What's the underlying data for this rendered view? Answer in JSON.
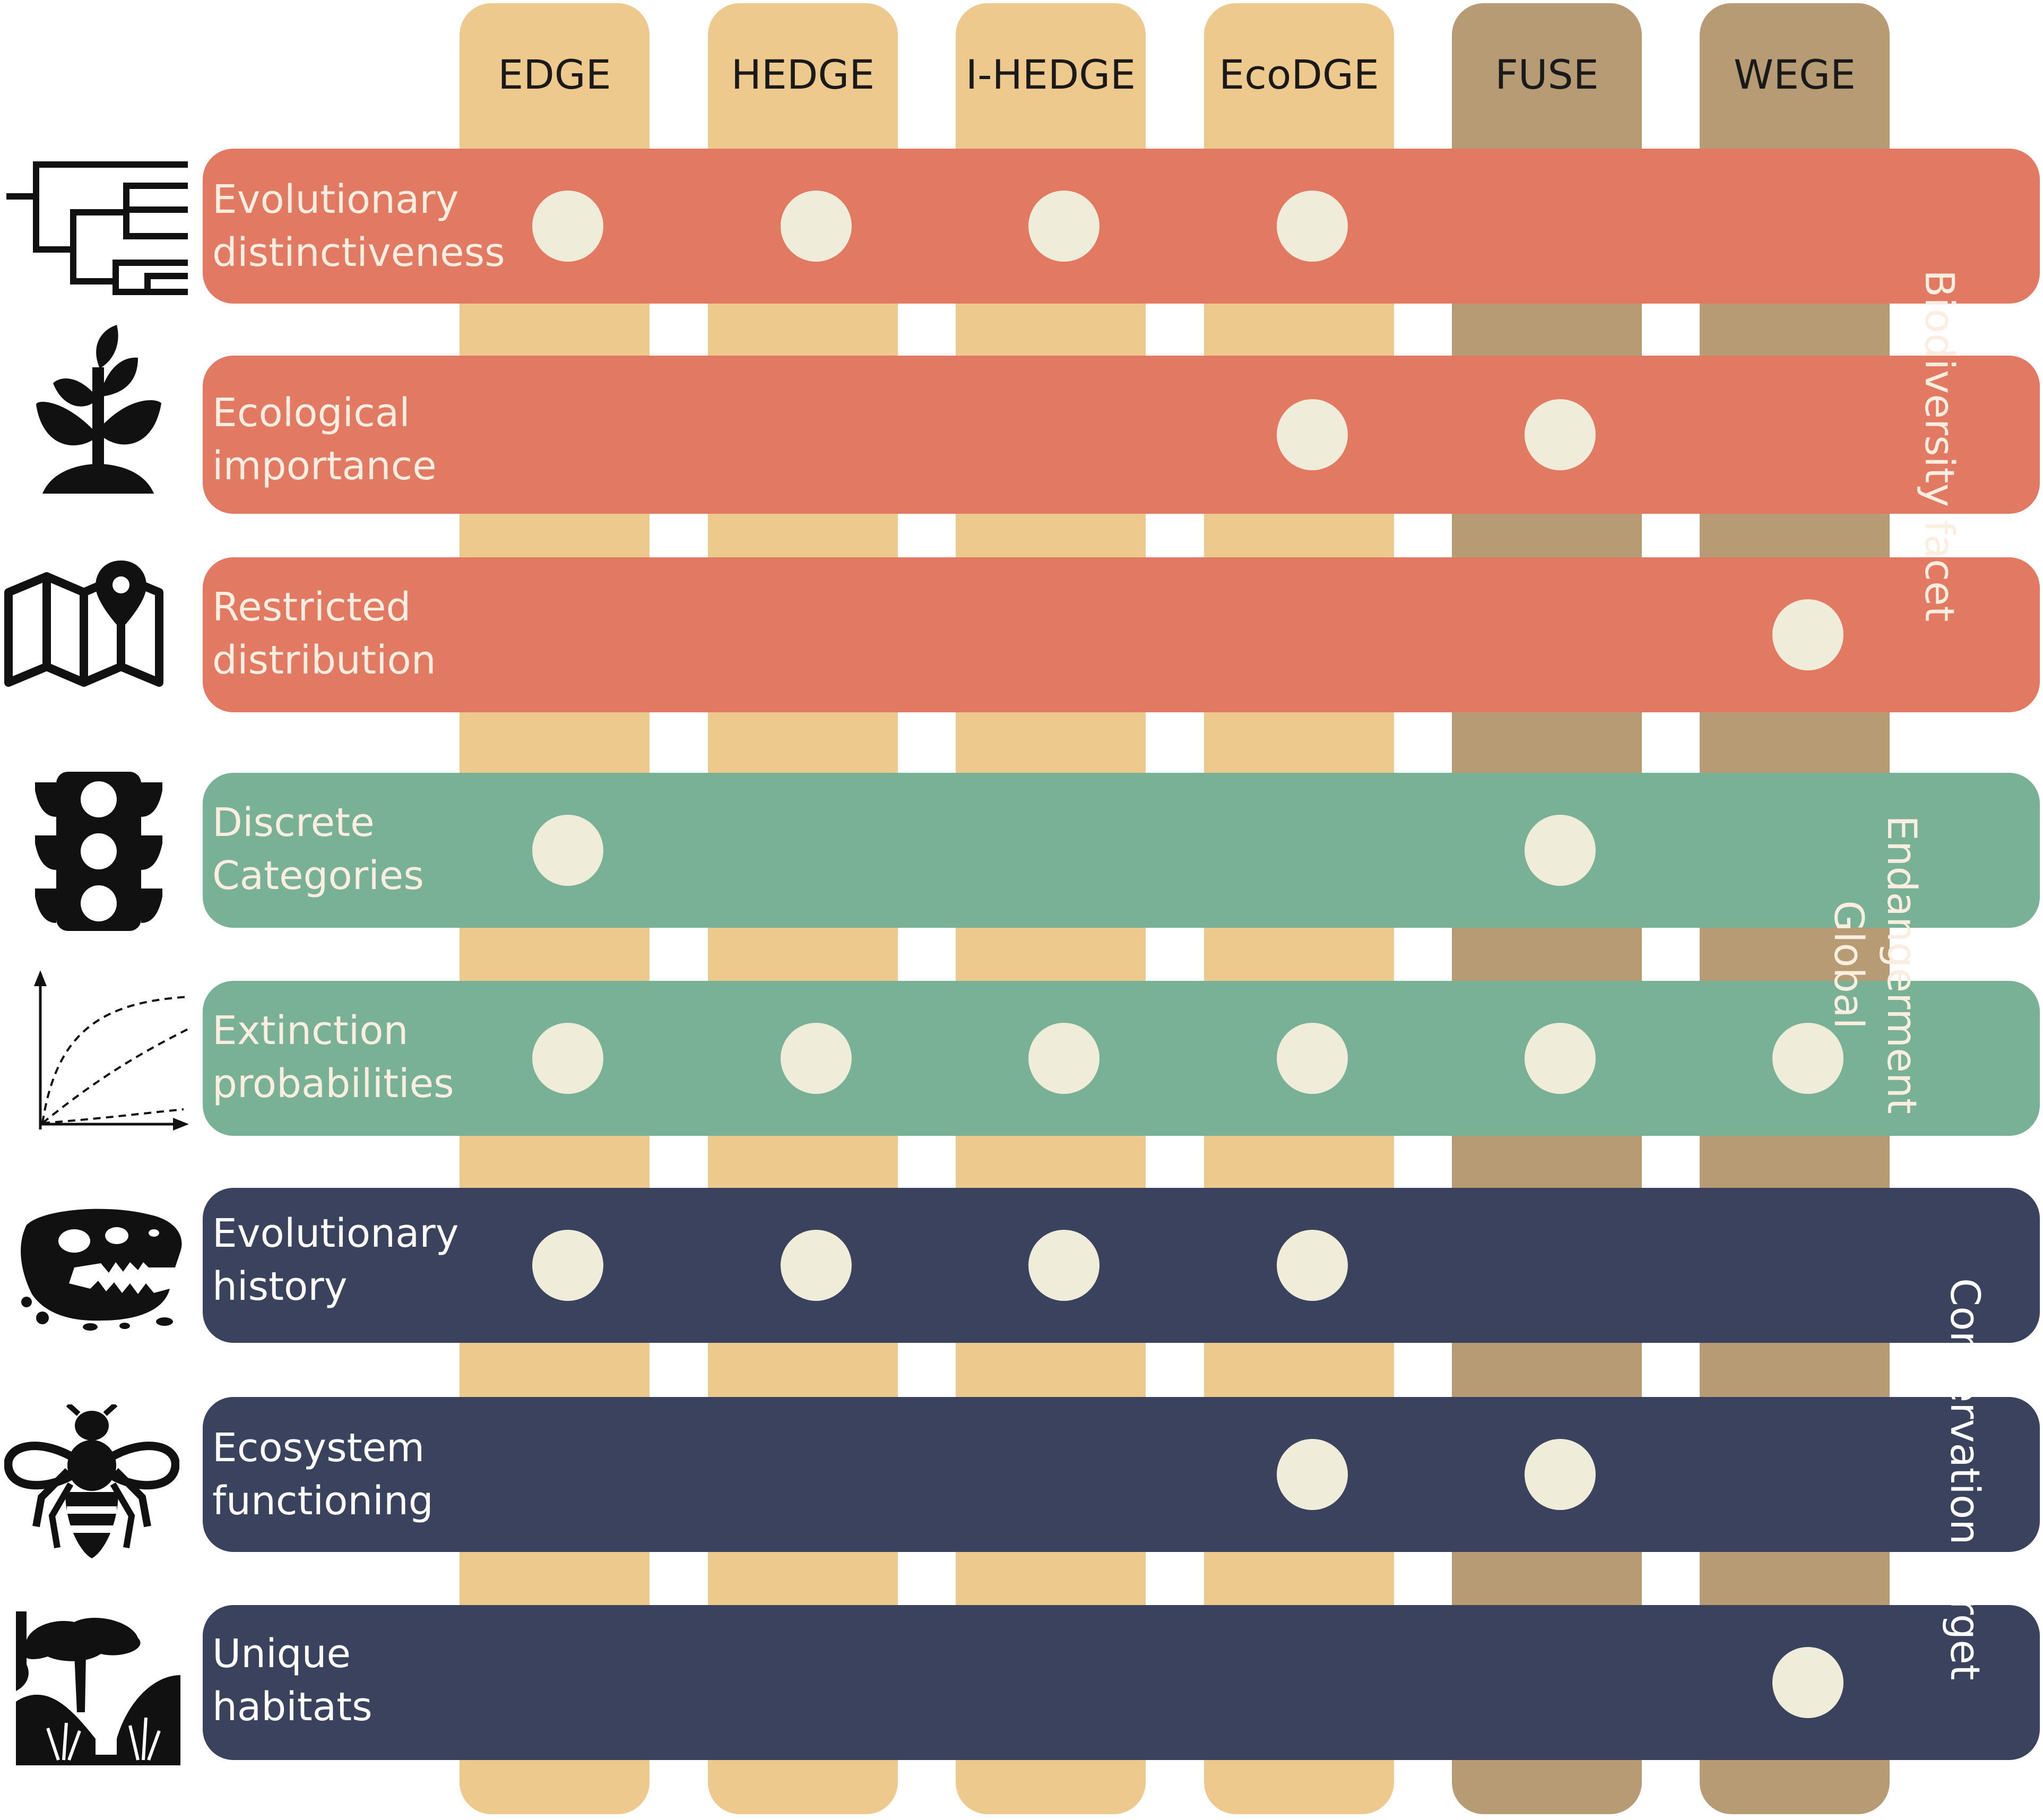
{
  "columns": [
    {
      "label": "EDGE",
      "tone": "light"
    },
    {
      "label": "HEDGE",
      "tone": "light"
    },
    {
      "label": "I-HEDGE",
      "tone": "light"
    },
    {
      "label": "EcoDGE",
      "tone": "light"
    },
    {
      "label": "FUSE",
      "tone": "dark"
    },
    {
      "label": "WEGE",
      "tone": "dark"
    }
  ],
  "groups": {
    "biodiversity_facet": "Biodiversity facet",
    "global_endangerment_line1": "Global",
    "global_endangerment_line2": "Endangerment",
    "conservation_target": "Conservation target"
  },
  "rows": [
    {
      "line1": "Evolutionary",
      "line2": "distinctiveness",
      "group": "bio",
      "icon": "phylogenetic-tree-icon",
      "metrics": [
        "EDGE",
        "HEDGE",
        "I-HEDGE",
        "EcoDGE"
      ]
    },
    {
      "line1": "Ecological",
      "line2": "importance",
      "group": "bio",
      "icon": "plant-sprout-icon",
      "metrics": [
        "EcoDGE",
        "FUSE"
      ]
    },
    {
      "line1": "Restricted",
      "line2": "distribution",
      "group": "bio",
      "icon": "map-pin-icon",
      "metrics": [
        "WEGE"
      ]
    },
    {
      "line1": "Discrete",
      "line2": "Categories",
      "group": "end",
      "icon": "traffic-light-icon",
      "metrics": [
        "EDGE",
        "FUSE"
      ]
    },
    {
      "line1": "Extinction",
      "line2": "probabilities",
      "group": "end",
      "icon": "probability-curves-icon",
      "metrics": [
        "EDGE",
        "HEDGE",
        "I-HEDGE",
        "EcoDGE",
        "FUSE",
        "WEGE"
      ]
    },
    {
      "line1": "Evolutionary",
      "line2": "history",
      "group": "cons",
      "icon": "dinosaur-skull-icon",
      "metrics": [
        "EDGE",
        "HEDGE",
        "I-HEDGE",
        "EcoDGE"
      ]
    },
    {
      "line1": "Ecosystem",
      "line2": "functioning",
      "group": "cons",
      "icon": "bee-icon",
      "metrics": [
        "EcoDGE",
        "FUSE"
      ]
    },
    {
      "line1": "Unique",
      "line2": "habitats",
      "group": "cons",
      "icon": "savanna-habitat-icon",
      "metrics": [
        "WEGE"
      ]
    }
  ],
  "colors": {
    "column_light": "#eec98d",
    "column_dark": "#b69b74",
    "biodiversity_facet": "#e27963",
    "global_endangerment": "#79b197",
    "conservation_target": "#3a425d",
    "dot": "#efecd9"
  }
}
